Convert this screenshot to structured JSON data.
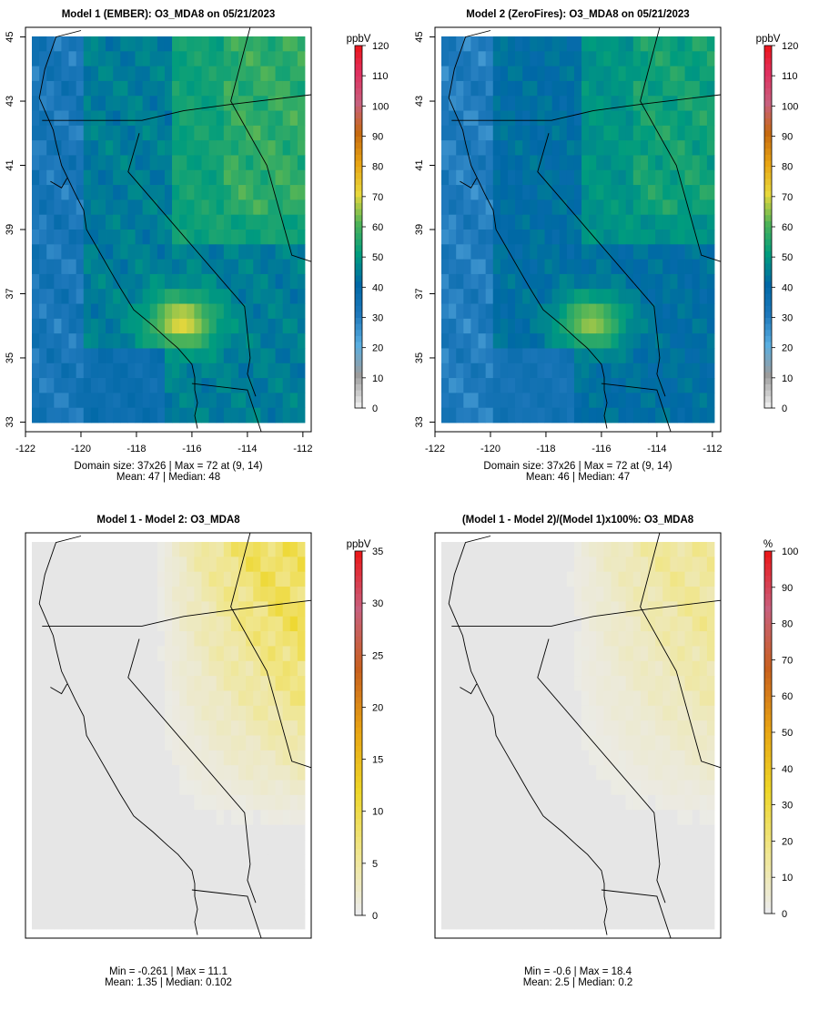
{
  "chart_data": [
    {
      "type": "heatmap",
      "id": "p1",
      "title": "Model 1 (EMBER): O3_MDA8 on 05/21/2023",
      "xlim": [
        -122,
        -111.7
      ],
      "ylim": [
        32.7,
        45.3
      ],
      "xticks": [
        -122,
        -120,
        -118,
        -116,
        -114,
        -112
      ],
      "yticks": [
        33,
        35,
        37,
        39,
        41,
        43,
        45
      ],
      "xtick_labels": [
        "-122",
        "-120",
        "-118",
        "-116",
        "-114",
        "-112"
      ],
      "ytick_labels": [
        "33",
        "35",
        "37",
        "39",
        "41",
        "43",
        "45"
      ],
      "colorbar": {
        "unit": "ppbV",
        "min": 0,
        "max": 120,
        "ticks": [
          0,
          10,
          20,
          30,
          40,
          50,
          60,
          70,
          80,
          90,
          100,
          110,
          120
        ],
        "tick_labels": [
          "0",
          "10",
          "20",
          "30",
          "40",
          "50",
          "60",
          "70",
          "80",
          "90",
          "100",
          "110",
          "120"
        ]
      },
      "grid": {
        "ncols": 37,
        "nrows": 26,
        "mode": "ozone",
        "scale": 1.0
      },
      "stats": [
        "Domain size: 37x26 | Max = 72 at (9, 14)",
        "Mean: 47 |  Median: 48"
      ]
    },
    {
      "type": "heatmap",
      "id": "p2",
      "title": "Model 2 (ZeroFires): O3_MDA8 on 05/21/2023",
      "xlim": [
        -122,
        -111.7
      ],
      "ylim": [
        32.7,
        45.3
      ],
      "xticks": [
        -122,
        -120,
        -118,
        -116,
        -114,
        -112
      ],
      "yticks": [
        33,
        35,
        37,
        39,
        41,
        43,
        45
      ],
      "xtick_labels": [
        "-122",
        "-120",
        "-118",
        "-116",
        "-114",
        "-112"
      ],
      "ytick_labels": [
        "33",
        "35",
        "37",
        "39",
        "41",
        "43",
        "45"
      ],
      "colorbar": {
        "unit": "ppbV",
        "min": 0,
        "max": 120,
        "ticks": [
          0,
          10,
          20,
          30,
          40,
          50,
          60,
          70,
          80,
          90,
          100,
          110,
          120
        ],
        "tick_labels": [
          "0",
          "10",
          "20",
          "30",
          "40",
          "50",
          "60",
          "70",
          "80",
          "90",
          "100",
          "110",
          "120"
        ]
      },
      "grid": {
        "ncols": 37,
        "nrows": 26,
        "mode": "ozone",
        "scale": 0.93
      },
      "stats": [
        "Domain size: 37x26 | Max = 72 at (9, 14)",
        "Mean: 46 |  Median: 47"
      ]
    },
    {
      "type": "heatmap",
      "id": "p3",
      "title": "Model 1 - Model 2: O3_MDA8",
      "xlim": [
        -122,
        -111.7
      ],
      "ylim": [
        32.7,
        45.3
      ],
      "colorbar": {
        "unit": "ppbV",
        "min": 0,
        "max": 35,
        "ticks": [
          0,
          5,
          10,
          15,
          20,
          25,
          30,
          35
        ],
        "tick_labels": [
          "0",
          "5",
          "10",
          "15",
          "20",
          "25",
          "30",
          "35"
        ]
      },
      "grid": {
        "ncols": 37,
        "nrows": 26,
        "mode": "diff",
        "peak": 11.1
      },
      "stats": [
        "Min = -0.261 | Max = 11.1",
        "Mean: 1.35 |  Median: 0.102"
      ]
    },
    {
      "type": "heatmap",
      "id": "p4",
      "title": "(Model 1 - Model 2)/(Model 1)x100%: O3_MDA8",
      "xlim": [
        -122,
        -111.7
      ],
      "ylim": [
        32.7,
        45.3
      ],
      "colorbar": {
        "unit": "%",
        "min": 0,
        "max": 100,
        "ticks": [
          0,
          10,
          20,
          30,
          40,
          50,
          60,
          70,
          80,
          90,
          100
        ],
        "tick_labels": [
          "0",
          "10",
          "20",
          "30",
          "40",
          "50",
          "60",
          "70",
          "80",
          "90",
          "100"
        ]
      },
      "grid": {
        "ncols": 37,
        "nrows": 26,
        "mode": "diff",
        "peak": 18.4
      },
      "stats": [
        "Min = -0.6 | Max = 18.4",
        "Mean: 2.5 |  Median: 0.2"
      ]
    }
  ],
  "colors": {
    "palette": [
      "#ebebeb",
      "#9c9c9c",
      "#5aaee0",
      "#1e78bb",
      "#0068a6",
      "#009c7e",
      "#4db358",
      "#e8d83c",
      "#e8a413",
      "#c66a10",
      "#c8607e",
      "#e03060",
      "#ee1111"
    ],
    "state_lines": "#000000",
    "background_grid": "#e6e6e6"
  }
}
